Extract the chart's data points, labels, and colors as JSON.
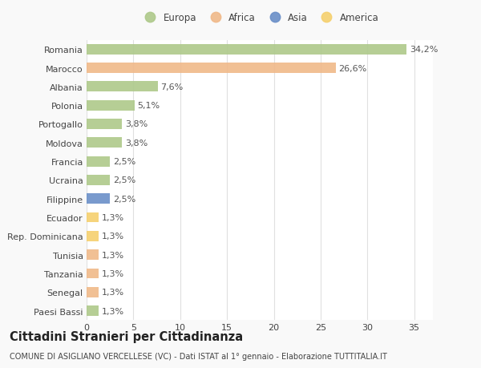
{
  "categories": [
    "Romania",
    "Marocco",
    "Albania",
    "Polonia",
    "Portogallo",
    "Moldova",
    "Francia",
    "Ucraina",
    "Filippine",
    "Ecuador",
    "Rep. Dominicana",
    "Tunisia",
    "Tanzania",
    "Senegal",
    "Paesi Bassi"
  ],
  "values": [
    34.2,
    26.6,
    7.6,
    5.1,
    3.8,
    3.8,
    2.5,
    2.5,
    2.5,
    1.3,
    1.3,
    1.3,
    1.3,
    1.3,
    1.3
  ],
  "labels": [
    "34,2%",
    "26,6%",
    "7,6%",
    "5,1%",
    "3,8%",
    "3,8%",
    "2,5%",
    "2,5%",
    "2,5%",
    "1,3%",
    "1,3%",
    "1,3%",
    "1,3%",
    "1,3%",
    "1,3%"
  ],
  "continents": [
    "Europa",
    "Africa",
    "Europa",
    "Europa",
    "Europa",
    "Europa",
    "Europa",
    "Europa",
    "Asia",
    "America",
    "America",
    "Africa",
    "Africa",
    "Africa",
    "Europa"
  ],
  "continent_colors": {
    "Europa": "#aec98a",
    "Africa": "#f0b989",
    "Asia": "#6a8fc8",
    "America": "#f5d06e"
  },
  "legend_order": [
    "Europa",
    "Africa",
    "Asia",
    "America"
  ],
  "legend_colors": [
    "#aec98a",
    "#f0b989",
    "#6a8fc8",
    "#f5d06e"
  ],
  "xlim": [
    0,
    37
  ],
  "xticks": [
    0,
    5,
    10,
    15,
    20,
    25,
    30,
    35
  ],
  "title": "Cittadini Stranieri per Cittadinanza",
  "subtitle": "COMUNE DI ASIGLIANO VERCELLESE (VC) - Dati ISTAT al 1° gennaio - Elaborazione TUTTITALIA.IT",
  "bg_color": "#f9f9f9",
  "bar_bg_color": "#ffffff",
  "grid_color": "#e0e0e0",
  "label_fontsize": 8,
  "tick_fontsize": 8,
  "title_fontsize": 10.5,
  "subtitle_fontsize": 7
}
